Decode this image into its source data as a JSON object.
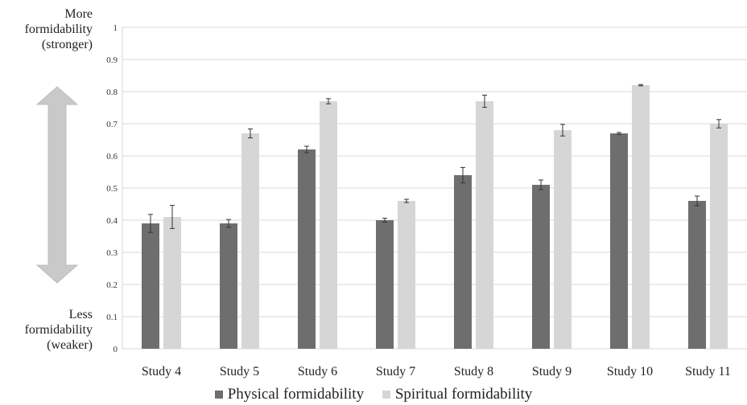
{
  "chart_data": {
    "type": "bar",
    "categories": [
      "Study 4",
      "Study 5",
      "Study 6",
      "Study 7",
      "Study 8",
      "Study 9",
      "Study 10",
      "Study 11"
    ],
    "series": [
      {
        "name": "Physical formidability",
        "values": [
          0.39,
          0.39,
          0.62,
          0.4,
          0.54,
          0.51,
          0.67,
          0.46
        ],
        "error": [
          0.028,
          0.012,
          0.01,
          0.006,
          0.024,
          0.015,
          0.003,
          0.015
        ],
        "color": "#6e6e6e"
      },
      {
        "name": "Spiritual formidability",
        "values": [
          0.41,
          0.67,
          0.77,
          0.46,
          0.77,
          0.68,
          0.82,
          0.7
        ],
        "error": [
          0.036,
          0.014,
          0.008,
          0.005,
          0.019,
          0.018,
          0.002,
          0.013
        ],
        "color": "#d6d6d6"
      }
    ],
    "ylim": [
      0,
      1
    ],
    "yticks": [
      "0",
      "0.1",
      "0.2",
      "0.3",
      "0.4",
      "0.5",
      "0.6",
      "0.7",
      "0.8",
      "0.9",
      "1"
    ],
    "grid": true,
    "legend_position": "bottom",
    "annotations": {
      "top": [
        "More",
        "formidability",
        "(stronger)"
      ],
      "bottom": [
        "Less",
        "formidability",
        "(weaker)"
      ],
      "arrow": "double-headed-vertical-arrow"
    },
    "gridline_color": "#d9d9d9",
    "arrow_color": "#c9c9c9"
  }
}
